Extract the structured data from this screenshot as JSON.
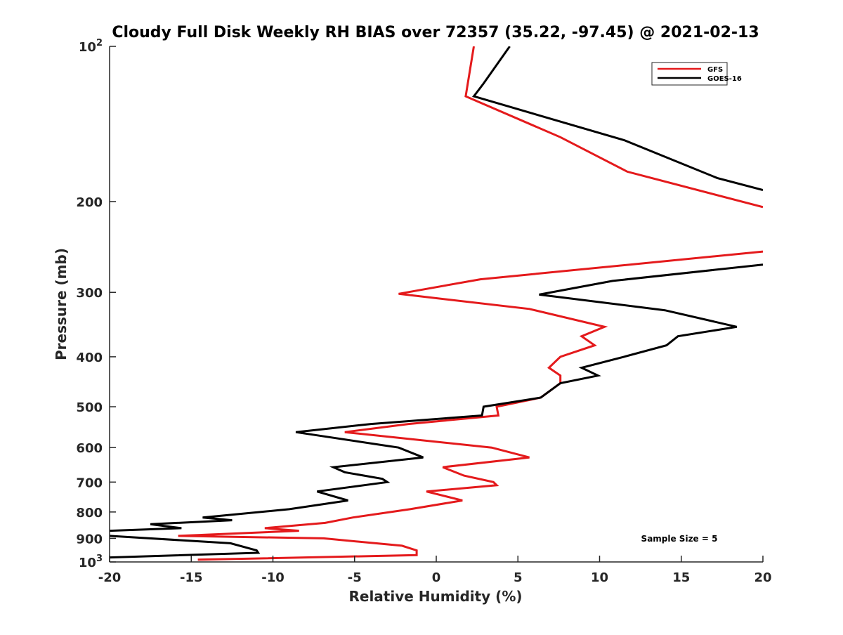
{
  "chart_data": {
    "type": "line",
    "title": "Cloudy Full Disk Weekly RH BIAS over 72357 (35.22, -97.45) @ 2021-02-13",
    "xlabel": "Relative Humidity (%)",
    "ylabel": "Pressure (mb)",
    "xlim": [
      -20,
      20
    ],
    "ylim": [
      100,
      1000
    ],
    "y_scale": "log",
    "y_reversed": true,
    "grid": false,
    "legend_position": "top-right",
    "x_ticks": [
      {
        "value": -20,
        "label": "-20"
      },
      {
        "value": -15,
        "label": "-15"
      },
      {
        "value": -10,
        "label": "-10"
      },
      {
        "value": -5,
        "label": "-5"
      },
      {
        "value": 0,
        "label": "0"
      },
      {
        "value": 5,
        "label": "5"
      },
      {
        "value": 10,
        "label": "10"
      },
      {
        "value": 15,
        "label": "15"
      },
      {
        "value": 20,
        "label": "20"
      }
    ],
    "y_ticks": [
      {
        "value": 100,
        "base": "10",
        "exp": "2"
      },
      {
        "value": 200,
        "label": "200"
      },
      {
        "value": 300,
        "label": "300"
      },
      {
        "value": 400,
        "label": "400"
      },
      {
        "value": 500,
        "label": "500"
      },
      {
        "value": 600,
        "label": "600"
      },
      {
        "value": 700,
        "label": "700"
      },
      {
        "value": 800,
        "label": "800"
      },
      {
        "value": 900,
        "label": "900"
      },
      {
        "value": 1000,
        "base": "10",
        "exp": "3"
      }
    ],
    "series": [
      {
        "name": "GFS",
        "color": "#e41a1c",
        "points": [
          [
            2.3,
            100
          ],
          [
            1.8,
            125
          ],
          [
            7.6,
            150
          ],
          [
            11.7,
            175
          ],
          [
            20,
            205
          ],
          [
            null,
            null
          ],
          [
            20,
            250
          ],
          [
            2.7,
            283
          ],
          [
            -2.3,
            302
          ],
          [
            5.7,
            323
          ],
          [
            10.3,
            350
          ],
          [
            8.9,
            365
          ],
          [
            9.7,
            380
          ],
          [
            7.6,
            400
          ],
          [
            6.9,
            420
          ],
          [
            7.6,
            435
          ],
          [
            7.6,
            450
          ],
          [
            6.4,
            480
          ],
          [
            3.7,
            500
          ],
          [
            3.8,
            520
          ],
          [
            -1.7,
            540
          ],
          [
            -5.6,
            560
          ],
          [
            3.4,
            600
          ],
          [
            5.7,
            627
          ],
          [
            0.4,
            655
          ],
          [
            1.7,
            680
          ],
          [
            3.5,
            700
          ],
          [
            3.7,
            710
          ],
          [
            -0.6,
            730
          ],
          [
            1.6,
            760
          ],
          [
            -1.6,
            790
          ],
          [
            -5.1,
            820
          ],
          [
            -6.8,
            840
          ],
          [
            -10.5,
            860
          ],
          [
            -8.4,
            870
          ],
          [
            -15.8,
            890
          ],
          [
            -6.9,
            900
          ],
          [
            -2.1,
            930
          ],
          [
            -1.2,
            950
          ],
          [
            -1.2,
            970
          ],
          [
            -14.6,
            990
          ]
        ]
      },
      {
        "name": "GOES-16",
        "color": "#000000",
        "points": [
          [
            4.5,
            100
          ],
          [
            2.9,
            118
          ],
          [
            2.3,
            125
          ],
          [
            11.5,
            152
          ],
          [
            17.2,
            180
          ],
          [
            20,
            190
          ],
          [
            null,
            null
          ],
          [
            20,
            265
          ],
          [
            10.8,
            285
          ],
          [
            6.3,
            303
          ],
          [
            14.0,
            325
          ],
          [
            18.4,
            350
          ],
          [
            14.8,
            365
          ],
          [
            14.1,
            380
          ],
          [
            11.5,
            400
          ],
          [
            8.9,
            420
          ],
          [
            9.9,
            435
          ],
          [
            7.6,
            450
          ],
          [
            6.4,
            480
          ],
          [
            2.9,
            500
          ],
          [
            2.8,
            520
          ],
          [
            -4.0,
            540
          ],
          [
            -8.6,
            560
          ],
          [
            -2.3,
            600
          ],
          [
            -0.8,
            627
          ],
          [
            -6.3,
            655
          ],
          [
            -5.6,
            670
          ],
          [
            -3.3,
            690
          ],
          [
            -3.0,
            700
          ],
          [
            -7.3,
            730
          ],
          [
            -5.4,
            760
          ],
          [
            -9.0,
            790
          ],
          [
            -14.3,
            820
          ],
          [
            -12.5,
            830
          ],
          [
            -17.5,
            845
          ],
          [
            -15.6,
            860
          ],
          [
            -20,
            870
          ],
          [
            null,
            null
          ],
          [
            -20,
            890
          ],
          [
            -12.6,
            920
          ],
          [
            -11.0,
            950
          ],
          [
            -10.9,
            960
          ],
          [
            -20,
            980
          ]
        ]
      }
    ],
    "annotations": [
      {
        "text": "Sample Size = 5"
      }
    ]
  }
}
